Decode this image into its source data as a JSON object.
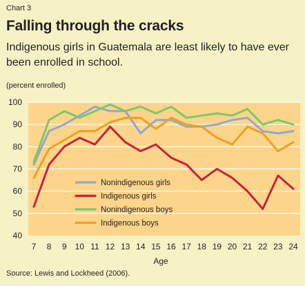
{
  "chart_label": "Chart 3",
  "title": "Falling through the cracks",
  "subtitle": "Indigenous girls in Guatemala are least likely to have ever been enrolled in school.",
  "source": "Source: Lewis and Lockheed (2006).",
  "chart_data": {
    "type": "line",
    "ylabel": "(percent enrolled)",
    "xlabel": "Age",
    "x": [
      7,
      8,
      9,
      10,
      11,
      12,
      13,
      14,
      15,
      16,
      17,
      18,
      19,
      20,
      21,
      22,
      23,
      24
    ],
    "ylim": [
      40,
      100
    ],
    "yticks": [
      40,
      50,
      60,
      70,
      80,
      90,
      100
    ],
    "grid": true,
    "legend_position": "center-left",
    "series": [
      {
        "name": "Nonindigenous girls",
        "color": "#8fa8d4",
        "values": [
          72,
          87,
          90,
          94,
          98,
          96,
          96,
          86,
          92,
          92,
          89,
          89,
          90,
          92,
          93,
          87,
          86,
          87
        ]
      },
      {
        "name": "Indigenous girls",
        "color": "#c8203b",
        "values": [
          53,
          72,
          80,
          84,
          81,
          89,
          82,
          78,
          81,
          75,
          72,
          65,
          70,
          66,
          60,
          52,
          67,
          61
        ]
      },
      {
        "name": "Nonindigenous boys",
        "color": "#7dc66b",
        "values": [
          73,
          92,
          96,
          93,
          96,
          99,
          96,
          98,
          95,
          98,
          93,
          94,
          95,
          94,
          97,
          90,
          92,
          90
        ]
      },
      {
        "name": "Indigenous boys",
        "color": "#f0a020",
        "values": [
          66,
          79,
          83,
          87,
          87,
          91,
          93,
          93,
          88,
          93,
          90,
          89,
          84,
          81,
          89,
          86,
          78,
          82
        ]
      }
    ]
  }
}
